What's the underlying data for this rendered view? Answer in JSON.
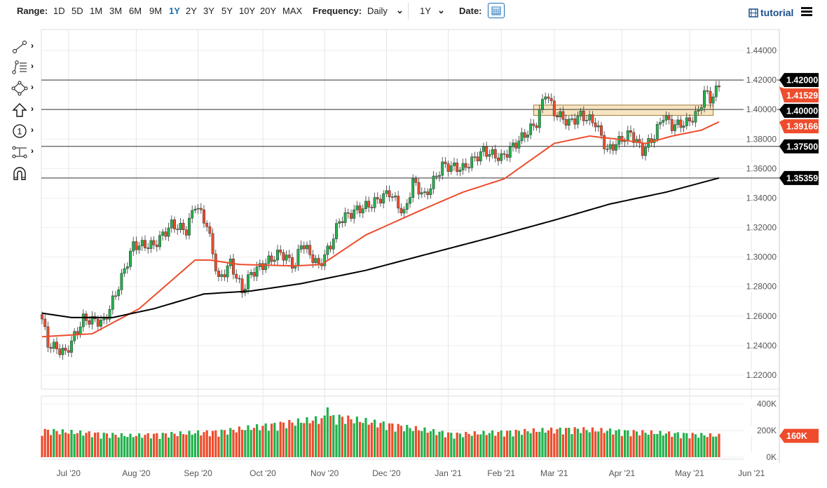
{
  "toolbar": {
    "range_label": "Range:",
    "ranges": [
      "1D",
      "5D",
      "1M",
      "3M",
      "6M",
      "9M",
      "1Y",
      "2Y",
      "3Y",
      "5Y",
      "10Y",
      "20Y",
      "MAX"
    ],
    "active_range": "1Y",
    "frequency_label": "Frequency:",
    "frequency": "Daily",
    "period": "1Y",
    "date_label": "Date:",
    "tutorial": "tutorial"
  },
  "colors": {
    "up": "#22b14c",
    "down": "#ee4c2c",
    "ma50": "#ee4c2c",
    "ma200": "#000000",
    "accent": "#1a6fb5"
  },
  "tools": [
    "trendline-icon",
    "fibonacci-icon",
    "shapes-icon",
    "arrow-icon",
    "annotation-icon",
    "measure-icon",
    "magnet-icon"
  ],
  "chart_data": {
    "type": "candlestick",
    "ylim": [
      1.21,
      1.45
    ],
    "yticks": [
      "1.44000",
      "1.42000",
      "1.40000",
      "1.38000",
      "1.36000",
      "1.34000",
      "1.32000",
      "1.30000",
      "1.28000",
      "1.26000",
      "1.24000",
      "1.22000"
    ],
    "ytick_values": [
      1.44,
      1.42,
      1.4,
      1.38,
      1.36,
      1.34,
      1.32,
      1.3,
      1.28,
      1.26,
      1.24,
      1.22
    ],
    "xticks": [
      {
        "label": "Jul '20",
        "day": 9
      },
      {
        "label": "Aug '20",
        "day": 32
      },
      {
        "label": "Sep '20",
        "day": 53
      },
      {
        "label": "Oct '20",
        "day": 75
      },
      {
        "label": "Nov '20",
        "day": 96
      },
      {
        "label": "Dec '20",
        "day": 117
      },
      {
        "label": "Jan '21",
        "day": 138
      },
      {
        "label": "Feb '21",
        "day": 156
      },
      {
        "label": "Mar '21",
        "day": 174
      },
      {
        "label": "Apr '21",
        "day": 197
      },
      {
        "label": "May '21",
        "day": 220
      },
      {
        "label": "Jun '21",
        "day": 241
      }
    ],
    "close_anchors": [
      [
        0,
        1.258
      ],
      [
        2,
        1.241
      ],
      [
        8,
        1.235
      ],
      [
        14,
        1.258
      ],
      [
        21,
        1.256
      ],
      [
        25,
        1.275
      ],
      [
        31,
        1.308
      ],
      [
        38,
        1.308
      ],
      [
        44,
        1.322
      ],
      [
        49,
        1.318
      ],
      [
        52,
        1.336
      ],
      [
        56,
        1.322
      ],
      [
        60,
        1.284
      ],
      [
        64,
        1.296
      ],
      [
        68,
        1.277
      ],
      [
        71,
        1.289
      ],
      [
        76,
        1.296
      ],
      [
        81,
        1.303
      ],
      [
        86,
        1.294
      ],
      [
        88,
        1.31
      ],
      [
        94,
        1.294
      ],
      [
        98,
        1.308
      ],
      [
        101,
        1.325
      ],
      [
        107,
        1.332
      ],
      [
        112,
        1.336
      ],
      [
        118,
        1.344
      ],
      [
        123,
        1.329
      ],
      [
        126,
        1.351
      ],
      [
        130,
        1.341
      ],
      [
        136,
        1.362
      ],
      [
        143,
        1.36
      ],
      [
        150,
        1.372
      ],
      [
        156,
        1.367
      ],
      [
        162,
        1.379
      ],
      [
        168,
        1.391
      ],
      [
        171,
        1.412
      ],
      [
        174,
        1.398
      ],
      [
        179,
        1.391
      ],
      [
        183,
        1.396
      ],
      [
        188,
        1.391
      ],
      [
        192,
        1.372
      ],
      [
        195,
        1.377
      ],
      [
        200,
        1.384
      ],
      [
        204,
        1.372
      ],
      [
        208,
        1.382
      ],
      [
        211,
        1.396
      ],
      [
        214,
        1.389
      ],
      [
        219,
        1.391
      ],
      [
        223,
        1.398
      ],
      [
        225,
        1.412
      ],
      [
        227,
        1.407
      ],
      [
        230,
        1.41529
      ]
    ],
    "ma50_anchors": [
      [
        0,
        1.246
      ],
      [
        17,
        1.248
      ],
      [
        33,
        1.265
      ],
      [
        52,
        1.298
      ],
      [
        57,
        1.298
      ],
      [
        67,
        1.295
      ],
      [
        86,
        1.294
      ],
      [
        95,
        1.295
      ],
      [
        110,
        1.315
      ],
      [
        129,
        1.332
      ],
      [
        143,
        1.344
      ],
      [
        157,
        1.353
      ],
      [
        174,
        1.377
      ],
      [
        186,
        1.382
      ],
      [
        195,
        1.38
      ],
      [
        205,
        1.377
      ],
      [
        214,
        1.382
      ],
      [
        224,
        1.386
      ],
      [
        230,
        1.39166
      ]
    ],
    "ma200_anchors": [
      [
        0,
        1.262
      ],
      [
        10,
        1.259
      ],
      [
        24,
        1.259
      ],
      [
        38,
        1.265
      ],
      [
        55,
        1.275
      ],
      [
        71,
        1.277
      ],
      [
        88,
        1.282
      ],
      [
        110,
        1.291
      ],
      [
        129,
        1.301
      ],
      [
        152,
        1.313
      ],
      [
        174,
        1.325
      ],
      [
        193,
        1.336
      ],
      [
        212,
        1.344
      ],
      [
        230,
        1.35359
      ]
    ],
    "hlines": [
      {
        "value": 1.42,
        "label": "1.42000"
      },
      {
        "value": 1.4,
        "label": "1.40000"
      },
      {
        "value": 1.375,
        "label": "1.37500"
      },
      {
        "value": 1.35359,
        "label": "1.35359"
      }
    ],
    "zone": {
      "from_day": 167,
      "to_day": 228,
      "low": 1.396,
      "high": 1.403
    },
    "last_price": {
      "value": 1.41529,
      "label": "1.41529"
    },
    "ma50_last": {
      "value": 1.39166,
      "label": "1.39166"
    },
    "volume": {
      "yticks": [
        "400K",
        "200K",
        "0K"
      ],
      "ytick_values": [
        400,
        200,
        0
      ],
      "anchors_k": [
        [
          0,
          200
        ],
        [
          30,
          160
        ],
        [
          60,
          190
        ],
        [
          100,
          300
        ],
        [
          140,
          170
        ],
        [
          180,
          210
        ],
        [
          230,
          160
        ]
      ],
      "last_label": "160K",
      "last_value": 160
    }
  }
}
